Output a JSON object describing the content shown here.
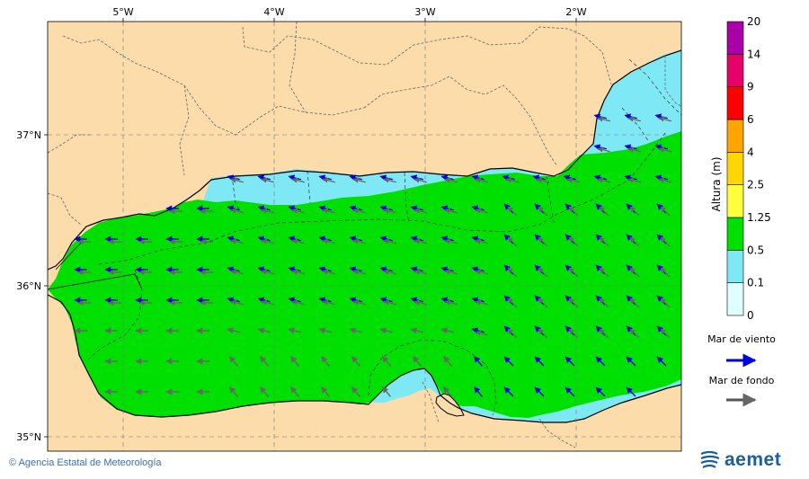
{
  "map": {
    "lon_ticks": [
      "5°W",
      "4°W",
      "3°W",
      "2°W"
    ],
    "lat_ticks": [
      "37°N",
      "36°N",
      "35°N"
    ]
  },
  "legend": {
    "title": "Altura (m)",
    "bins": [
      {
        "label": "0",
        "color": "#e0ffff"
      },
      {
        "label": "0.1",
        "color": "#7fe8f5"
      },
      {
        "label": "0.5",
        "color": "#00e000"
      },
      {
        "label": "1.25",
        "color": "#ffff3c"
      },
      {
        "label": "2.5",
        "color": "#ffd700"
      },
      {
        "label": "4",
        "color": "#ffa500"
      },
      {
        "label": "6",
        "color": "#ff0000"
      },
      {
        "label": "9",
        "color": "#e8006a"
      },
      {
        "label": "14",
        "color": "#aa00aa"
      }
    ],
    "top_label": "20",
    "wind_sea_label": "Mar de viento",
    "wind_sea_color": "#0000dd",
    "swell_label": "Mar de fondo",
    "swell_color": "#555555"
  },
  "colors": {
    "land": "#fcdcaa",
    "sea_low": "#7fe8f5",
    "sea_mid": "#00e000"
  },
  "footer": {
    "credit": "Agencia Estatal de Meteorología",
    "logo_text": "aemet"
  }
}
